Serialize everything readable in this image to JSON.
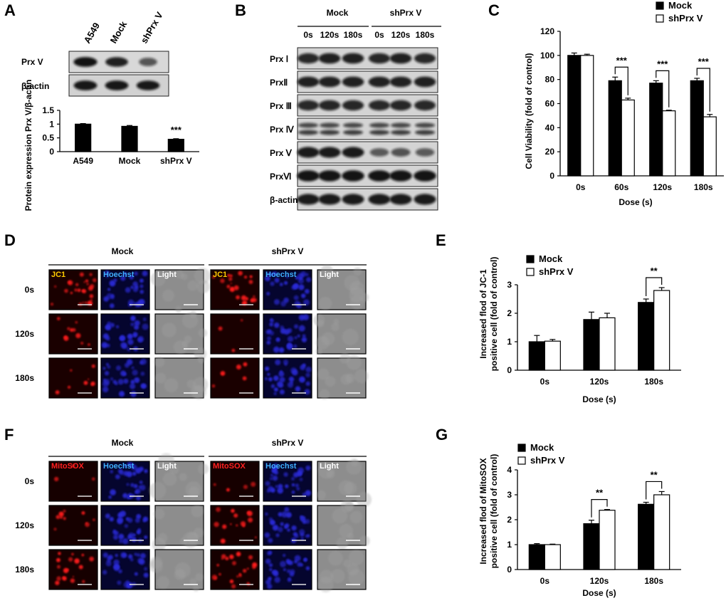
{
  "panel_labels": {
    "A": "A",
    "B": "B",
    "C": "C",
    "D": "D",
    "E": "E",
    "F": "F",
    "G": "G"
  },
  "panel_a": {
    "lanes": [
      "A549",
      "Mock",
      "shPrx V"
    ],
    "blot_labels": [
      "Prx V",
      "β-actin"
    ],
    "band_intensity": {
      "Prx V": [
        0.95,
        0.85,
        0.45
      ],
      "β-actin": [
        0.92,
        0.92,
        0.9
      ]
    }
  },
  "panel_b": {
    "groups": [
      "Mock",
      "shPrx V"
    ],
    "times": [
      "0s",
      "120s",
      "180s",
      "0s",
      "120s",
      "180s"
    ],
    "blot_labels": [
      "Prx Ⅰ",
      "PrxⅡ",
      "Prx Ⅲ",
      "Prx Ⅳ",
      "Prx Ⅴ",
      "PrxⅥ",
      "β-actin"
    ]
  },
  "panel_d": {
    "groups": [
      "Mock",
      "shPrx V"
    ],
    "channels": [
      "JC1",
      "Hoechst",
      "Light",
      "JC1",
      "Hoechst",
      "Light"
    ],
    "rows": [
      "0s",
      "120s",
      "180s"
    ],
    "colors": {
      "JC1": "#ffcc00",
      "Hoechst": "#3fb0ff",
      "Light": "#ffffff"
    }
  },
  "panel_f": {
    "groups": [
      "Mock",
      "shPrx V"
    ],
    "channels": [
      "MitoSOX",
      "Hoechst",
      "Light",
      "MitoSOX",
      "Hoechst",
      "Light"
    ],
    "rows": [
      "0s",
      "120s",
      "180s"
    ],
    "colors": {
      "MitoSOX": "#ff2020",
      "Hoechst": "#3fb0ff",
      "Light": "#ffffff"
    }
  },
  "chart_data": [
    {
      "panel": "A",
      "type": "bar",
      "categories": [
        "A549",
        "Mock",
        "shPrx V"
      ],
      "series": [
        {
          "values": [
            1.0,
            0.92,
            0.45
          ],
          "errors": [
            0.02,
            0.03,
            0.02
          ]
        }
      ],
      "ylabel": "Protein expression Prx V/β-actin",
      "ylim": [
        0,
        1.5
      ],
      "yticks": [
        "0",
        "0.5",
        "1",
        "1.5"
      ],
      "annotations": [
        {
          "category": "shPrx V",
          "text": "***"
        }
      ]
    },
    {
      "panel": "C",
      "type": "bar",
      "categories": [
        "0s",
        "60s",
        "120s",
        "180s"
      ],
      "series": [
        {
          "name": "Mock",
          "values": [
            100,
            79,
            77,
            79
          ],
          "errors": [
            2,
            3,
            2,
            2
          ]
        },
        {
          "name": "shPrx V",
          "values": [
            100,
            63,
            54,
            49
          ],
          "errors": [
            1,
            1.5,
            0.5,
            2
          ]
        }
      ],
      "xlabel": "Dose (s)",
      "ylabel": "Cell Viability (fold of control)",
      "ylim": [
        0,
        120
      ],
      "yticks": [
        "0",
        "20",
        "40",
        "60",
        "80",
        "100",
        "120"
      ],
      "legend": "top-right",
      "annotations": [
        {
          "category": "60s",
          "text": "***"
        },
        {
          "category": "120s",
          "text": "***"
        },
        {
          "category": "180s",
          "text": "***"
        }
      ]
    },
    {
      "panel": "E",
      "type": "bar",
      "categories": [
        "0s",
        "120s",
        "180s"
      ],
      "series": [
        {
          "name": "Mock",
          "values": [
            1.0,
            1.78,
            2.38
          ],
          "errors": [
            0.22,
            0.26,
            0.12
          ]
        },
        {
          "name": "shPrx V",
          "values": [
            1.02,
            1.84,
            2.8
          ],
          "errors": [
            0.06,
            0.16,
            0.1
          ]
        }
      ],
      "xlabel": "Dose (s)",
      "ylabel": "Increased flod of JC-1 positive cell (fold of control)",
      "ylim": [
        0,
        3
      ],
      "yticks": [
        "0",
        "1",
        "2",
        "3"
      ],
      "legend": "top-left",
      "annotations": [
        {
          "category": "180s",
          "text": "**"
        }
      ]
    },
    {
      "panel": "G",
      "type": "bar",
      "categories": [
        "0s",
        "120s",
        "180s"
      ],
      "series": [
        {
          "name": "Mock",
          "values": [
            1.0,
            1.84,
            2.62
          ],
          "errors": [
            0.04,
            0.14,
            0.08
          ]
        },
        {
          "name": "shPrx V",
          "values": [
            1.0,
            2.38,
            3.0
          ],
          "errors": [
            0.02,
            0.03,
            0.13
          ]
        }
      ],
      "xlabel": "Dose (s)",
      "ylabel": "Increased flod of MitoSOX positive cell (fold of control)",
      "ylim": [
        0,
        4
      ],
      "yticks": [
        "0",
        "1",
        "2",
        "3",
        "4"
      ],
      "legend": "top-left",
      "annotations": [
        {
          "category": "120s",
          "text": "**"
        },
        {
          "category": "180s",
          "text": "**"
        }
      ]
    }
  ]
}
